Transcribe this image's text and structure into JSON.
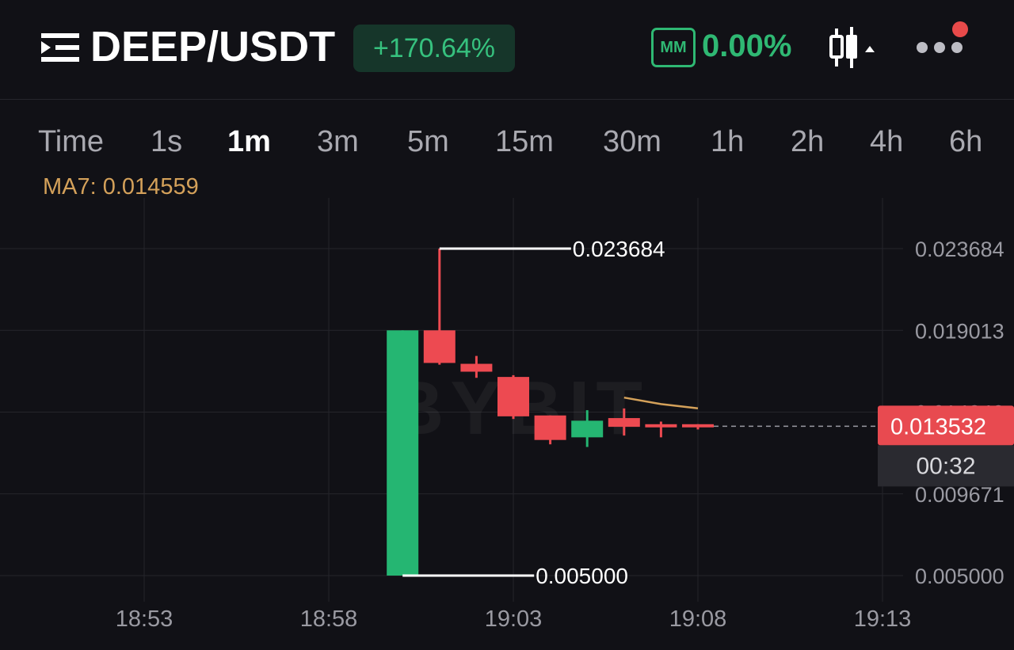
{
  "header": {
    "pair": "DEEP/USDT",
    "change": "+170.64%",
    "mm_label": "MM",
    "mm_value": "0.00%",
    "icons": [
      "menu-icon",
      "candlestick-chart-icon",
      "more-icon",
      "notification-dot"
    ],
    "colors": {
      "positive": "#36c17e",
      "mm": "#2fb873",
      "notification": "#e84a4a"
    }
  },
  "timeframes": {
    "items": [
      "Time",
      "1s",
      "1m",
      "3m",
      "5m",
      "15m",
      "30m",
      "1h",
      "2h",
      "4h",
      "6h"
    ],
    "active": "1m"
  },
  "indicator": {
    "ma_label": "MA7: 0.014559"
  },
  "chart_data": {
    "type": "candlestick",
    "x_tick_labels": [
      "18:53",
      "18:58",
      "19:03",
      "19:08",
      "19:13"
    ],
    "y_tick_labels": [
      "0.023684",
      "0.019013",
      "0.014342",
      "0.009671",
      "0.005000"
    ],
    "ylim": [
      0.005,
      0.023684
    ],
    "grid": true,
    "watermark": "BYBIT",
    "candles": [
      {
        "time": "19:00",
        "open": 0.005,
        "high": 0.019013,
        "low": 0.005,
        "close": 0.019013
      },
      {
        "time": "19:01",
        "open": 0.019013,
        "high": 0.023684,
        "low": 0.01705,
        "close": 0.01715
      },
      {
        "time": "19:02",
        "open": 0.0171,
        "high": 0.01755,
        "low": 0.0163,
        "close": 0.01665
      },
      {
        "time": "19:03",
        "open": 0.01635,
        "high": 0.01645,
        "low": 0.01395,
        "close": 0.0141
      },
      {
        "time": "19:04",
        "open": 0.01415,
        "high": 0.01415,
        "low": 0.0125,
        "close": 0.01275
      },
      {
        "time": "19:05",
        "open": 0.0129,
        "high": 0.01445,
        "low": 0.01235,
        "close": 0.01385
      },
      {
        "time": "19:06",
        "open": 0.014,
        "high": 0.01455,
        "low": 0.013,
        "close": 0.0135
      },
      {
        "time": "19:07",
        "open": 0.01365,
        "high": 0.0138,
        "low": 0.0129,
        "close": 0.0136
      },
      {
        "time": "19:08",
        "open": 0.01365,
        "high": 0.01365,
        "low": 0.01335,
        "close": 0.013532
      }
    ],
    "ma7": [
      {
        "time": "19:06",
        "value": 0.01517
      },
      {
        "time": "19:07",
        "value": 0.0148
      },
      {
        "time": "19:08",
        "value": 0.014559
      }
    ],
    "high_label": "0.023684",
    "low_label": "0.005000",
    "last_price": "0.013532",
    "countdown": "00:32",
    "colors": {
      "up": "#25b672",
      "down": "#ed4a51",
      "ma7": "#d4a15a",
      "grid": "#25252b",
      "axis_text": "#9a9aa2",
      "last_price_bg": "#e84a50"
    }
  }
}
